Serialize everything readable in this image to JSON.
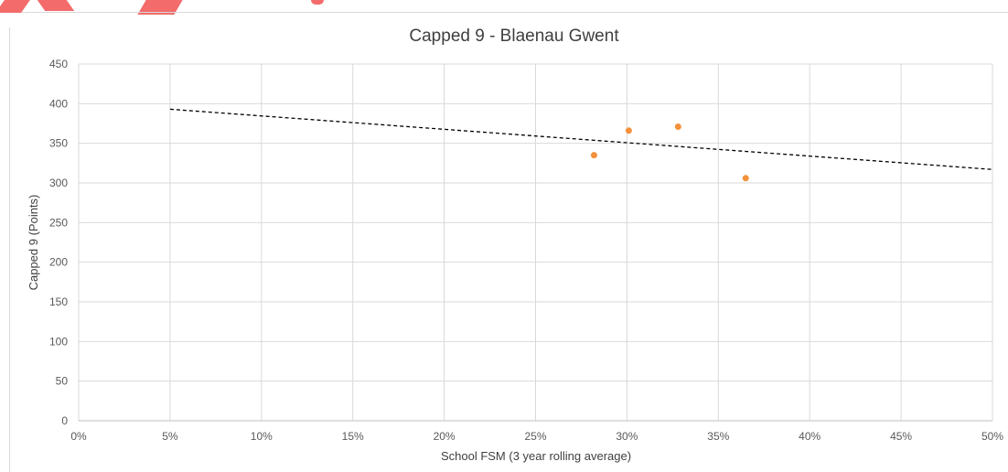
{
  "chart_data": {
    "type": "scatter",
    "title": "Capped 9 - Blaenau Gwent",
    "xlabel": "School FSM (3 year rolling average)",
    "ylabel": "Capped 9 (Points)",
    "xlim": [
      0,
      0.5
    ],
    "ylim": [
      0,
      450
    ],
    "x_ticks": [
      0,
      0.05,
      0.1,
      0.15,
      0.2,
      0.25,
      0.3,
      0.35,
      0.4,
      0.45,
      0.5
    ],
    "x_tick_labels": [
      "0%",
      "5%",
      "10%",
      "15%",
      "20%",
      "25%",
      "30%",
      "35%",
      "40%",
      "45%",
      "50%"
    ],
    "y_ticks": [
      0,
      50,
      100,
      150,
      200,
      250,
      300,
      350,
      400,
      450
    ],
    "y_tick_labels": [
      "0",
      "50",
      "100",
      "150",
      "200",
      "250",
      "300",
      "350",
      "400",
      "450"
    ],
    "grid": true,
    "series": [
      {
        "points": [
          {
            "x": 0.282,
            "y": 335
          },
          {
            "x": 0.301,
            "y": 366
          },
          {
            "x": 0.328,
            "y": 371
          },
          {
            "x": 0.365,
            "y": 306
          }
        ],
        "color": "#f4913a"
      }
    ],
    "trendline": {
      "type": "linear",
      "style": "dashed",
      "color": "#000000",
      "points": [
        {
          "x": 0.05,
          "y": 393
        },
        {
          "x": 0.5,
          "y": 317
        }
      ]
    }
  }
}
